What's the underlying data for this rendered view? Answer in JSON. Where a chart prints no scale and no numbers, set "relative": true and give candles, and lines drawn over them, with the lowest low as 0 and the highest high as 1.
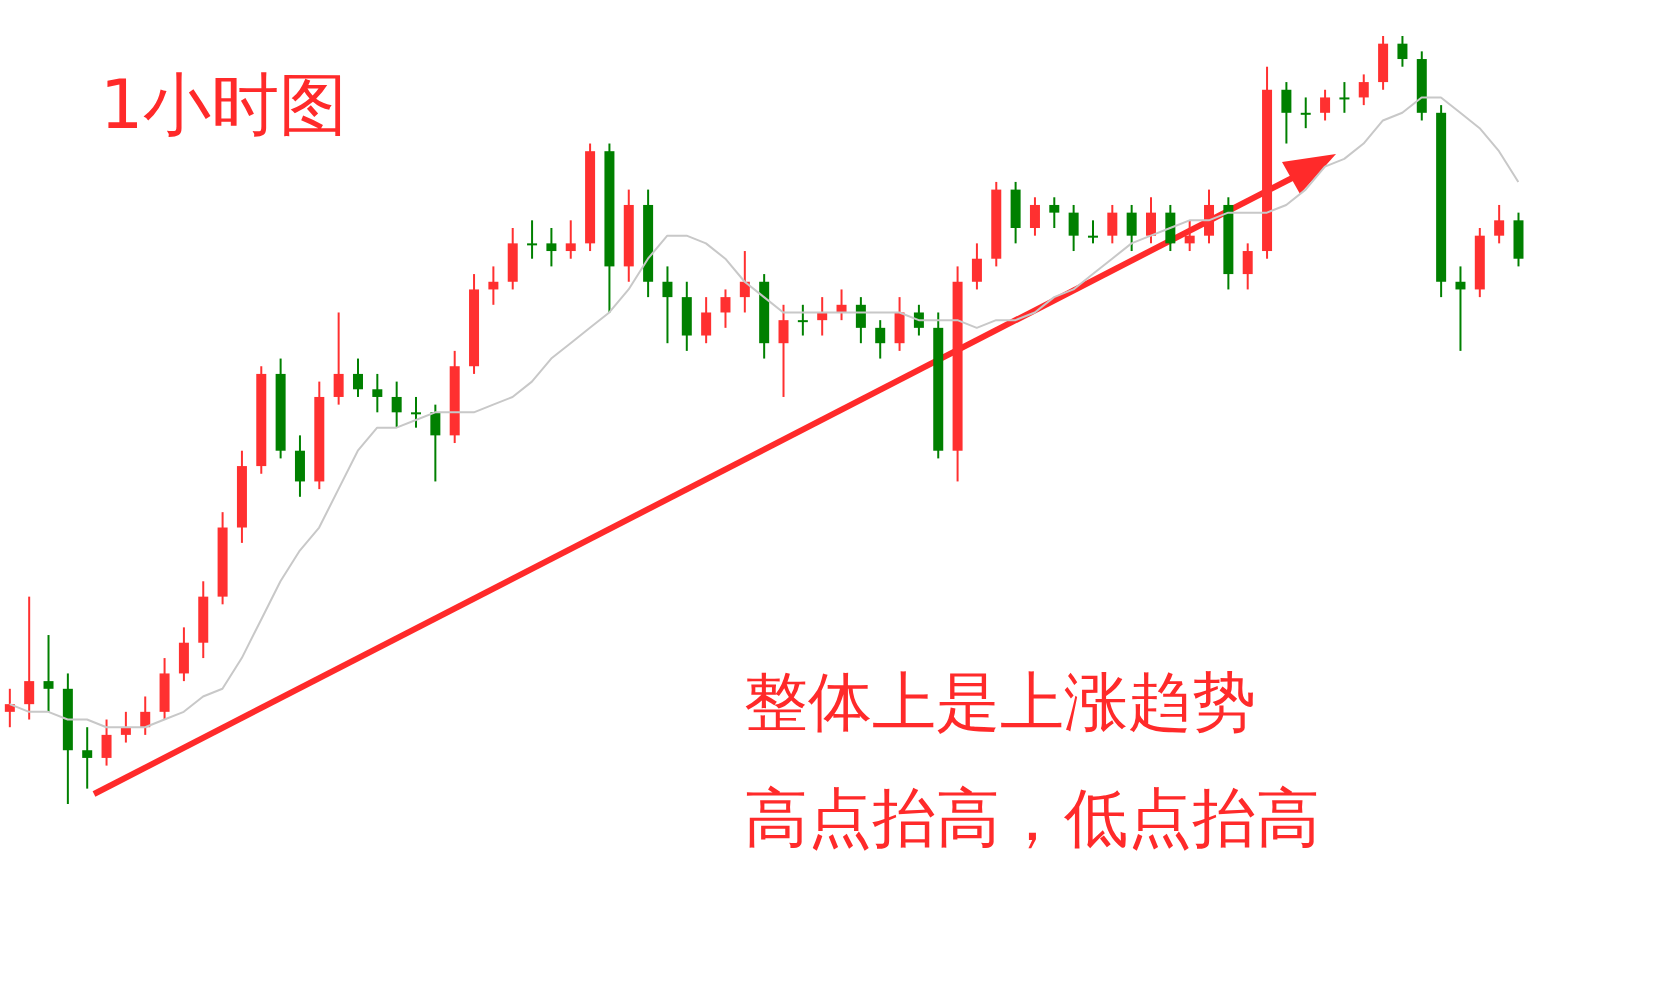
{
  "chart_data": {
    "type": "candlestick",
    "title": "1小时图",
    "relative": true,
    "annotations": [
      "整体上是上涨趋势",
      "高点抬高，低点抬高"
    ],
    "categories": [
      null,
      null,
      null,
      null,
      null,
      null,
      null,
      null,
      null,
      null,
      null,
      null,
      null,
      null,
      null,
      null,
      null,
      null,
      null,
      null,
      null,
      null,
      null,
      null,
      null,
      null,
      null,
      null,
      null,
      null,
      null,
      null,
      null,
      null,
      null,
      null,
      null,
      null,
      null,
      null,
      null,
      null,
      null,
      null,
      null,
      null,
      null,
      null,
      null,
      null,
      null,
      null,
      null,
      null,
      null,
      null,
      null,
      null,
      null,
      null,
      null,
      null,
      null,
      null,
      null,
      null,
      null,
      null,
      null,
      null,
      null,
      null,
      null,
      null,
      null,
      null,
      null,
      null,
      null
    ],
    "ohlc": [
      [
        0.12,
        0.15,
        0.1,
        0.13
      ],
      [
        0.13,
        0.27,
        0.11,
        0.16
      ],
      [
        0.16,
        0.22,
        0.12,
        0.15
      ],
      [
        0.15,
        0.17,
        0,
        0.07
      ],
      [
        0.07,
        0.1,
        0.02,
        0.06
      ],
      [
        0.06,
        0.11,
        0.05,
        0.09
      ],
      [
        0.09,
        0.12,
        0.08,
        0.1
      ],
      [
        0.1,
        0.14,
        0.09,
        0.12
      ],
      [
        0.12,
        0.19,
        0.11,
        0.17
      ],
      [
        0.17,
        0.23,
        0.16,
        0.21
      ],
      [
        0.21,
        0.29,
        0.19,
        0.27
      ],
      [
        0.27,
        0.38,
        0.26,
        0.36
      ],
      [
        0.36,
        0.46,
        0.34,
        0.44
      ],
      [
        0.44,
        0.57,
        0.43,
        0.56
      ],
      [
        0.56,
        0.58,
        0.45,
        0.46
      ],
      [
        0.46,
        0.48,
        0.4,
        0.42
      ],
      [
        0.42,
        0.55,
        0.41,
        0.53
      ],
      [
        0.53,
        0.64,
        0.52,
        0.56
      ],
      [
        0.56,
        0.58,
        0.53,
        0.54
      ],
      [
        0.54,
        0.56,
        0.51,
        0.53
      ],
      [
        0.53,
        0.55,
        0.49,
        0.51
      ],
      [
        0.51,
        0.53,
        0.49,
        0.51
      ],
      [
        0.51,
        0.52,
        0.42,
        0.48
      ],
      [
        0.48,
        0.59,
        0.47,
        0.57
      ],
      [
        0.57,
        0.69,
        0.56,
        0.67
      ],
      [
        0.67,
        0.7,
        0.65,
        0.68
      ],
      [
        0.68,
        0.75,
        0.67,
        0.73
      ],
      [
        0.73,
        0.76,
        0.71,
        0.73
      ],
      [
        0.73,
        0.75,
        0.7,
        0.72
      ],
      [
        0.72,
        0.76,
        0.71,
        0.73
      ],
      [
        0.73,
        0.86,
        0.72,
        0.85
      ],
      [
        0.85,
        0.86,
        0.64,
        0.7
      ],
      [
        0.7,
        0.8,
        0.68,
        0.78
      ],
      [
        0.78,
        0.8,
        0.66,
        0.68
      ],
      [
        0.68,
        0.7,
        0.6,
        0.66
      ],
      [
        0.66,
        0.68,
        0.59,
        0.61
      ],
      [
        0.61,
        0.66,
        0.6,
        0.64
      ],
      [
        0.64,
        0.67,
        0.62,
        0.66
      ],
      [
        0.66,
        0.72,
        0.64,
        0.68
      ],
      [
        0.68,
        0.69,
        0.58,
        0.6
      ],
      [
        0.6,
        0.65,
        0.53,
        0.63
      ],
      [
        0.63,
        0.65,
        0.61,
        0.63
      ],
      [
        0.63,
        0.66,
        0.61,
        0.64
      ],
      [
        0.64,
        0.67,
        0.63,
        0.65
      ],
      [
        0.65,
        0.66,
        0.6,
        0.62
      ],
      [
        0.62,
        0.63,
        0.58,
        0.6
      ],
      [
        0.6,
        0.66,
        0.59,
        0.64
      ],
      [
        0.64,
        0.65,
        0.61,
        0.62
      ],
      [
        0.62,
        0.64,
        0.45,
        0.46
      ],
      [
        0.46,
        0.7,
        0.42,
        0.68
      ],
      [
        0.68,
        0.73,
        0.67,
        0.71
      ],
      [
        0.71,
        0.81,
        0.7,
        0.8
      ],
      [
        0.8,
        0.81,
        0.73,
        0.75
      ],
      [
        0.75,
        0.79,
        0.74,
        0.78
      ],
      [
        0.78,
        0.79,
        0.75,
        0.77
      ],
      [
        0.77,
        0.78,
        0.72,
        0.74
      ],
      [
        0.74,
        0.76,
        0.73,
        0.74
      ],
      [
        0.74,
        0.78,
        0.73,
        0.77
      ],
      [
        0.77,
        0.78,
        0.72,
        0.74
      ],
      [
        0.74,
        0.79,
        0.73,
        0.77
      ],
      [
        0.77,
        0.78,
        0.72,
        0.73
      ],
      [
        0.73,
        0.76,
        0.72,
        0.74
      ],
      [
        0.74,
        0.8,
        0.73,
        0.78
      ],
      [
        0.78,
        0.79,
        0.67,
        0.69
      ],
      [
        0.69,
        0.73,
        0.67,
        0.72
      ],
      [
        0.72,
        0.96,
        0.71,
        0.93
      ],
      [
        0.93,
        0.94,
        0.86,
        0.9
      ],
      [
        0.9,
        0.92,
        0.88,
        0.9
      ],
      [
        0.9,
        0.93,
        0.89,
        0.92
      ],
      [
        0.92,
        0.94,
        0.9,
        0.92
      ],
      [
        0.92,
        0.95,
        0.91,
        0.94
      ],
      [
        0.94,
        1,
        0.93,
        0.99
      ],
      [
        0.99,
        1,
        0.96,
        0.97
      ],
      [
        0.97,
        0.98,
        0.89,
        0.9
      ],
      [
        0.9,
        0.91,
        0.66,
        0.68
      ],
      [
        0.68,
        0.7,
        0.59,
        0.67
      ],
      [
        0.67,
        0.75,
        0.66,
        0.74
      ],
      [
        0.74,
        0.78,
        0.73,
        0.76
      ],
      [
        0.76,
        0.77,
        0.7,
        0.71
      ]
    ],
    "colors": [
      "#ff3030",
      "#ff3030",
      "#008000",
      "#008000",
      "#008000",
      "#ff3030",
      "#ff3030",
      "#ff3030",
      "#ff3030",
      "#ff3030",
      "#ff3030",
      "#ff3030",
      "#ff3030",
      "#ff3030",
      "#008000",
      "#008000",
      "#ff3030",
      "#ff3030",
      "#008000",
      "#008000",
      "#008000",
      "#008000",
      "#008000",
      "#ff3030",
      "#ff3030",
      "#ff3030",
      "#ff3030",
      "#008000",
      "#008000",
      "#ff3030",
      "#ff3030",
      "#008000",
      "#ff3030",
      "#008000",
      "#008000",
      "#008000",
      "#ff3030",
      "#ff3030",
      "#ff3030",
      "#008000",
      "#ff3030",
      "#008000",
      "#ff3030",
      "#ff3030",
      "#008000",
      "#008000",
      "#ff3030",
      "#008000",
      "#008000",
      "#ff3030",
      "#ff3030",
      "#ff3030",
      "#008000",
      "#ff3030",
      "#008000",
      "#008000",
      "#008000",
      "#ff3030",
      "#008000",
      "#ff3030",
      "#008000",
      "#ff3030",
      "#ff3030",
      "#008000",
      "#ff3030",
      "#ff3030",
      "#008000",
      "#008000",
      "#ff3030",
      "#008000",
      "#ff3030",
      "#ff3030",
      "#008000",
      "#008000",
      "#008000",
      "#008000",
      "#ff3030",
      "#ff3030",
      "#008000"
    ],
    "series": [
      {
        "type": "line",
        "color": "#c8c8c8",
        "values": [
          0.13,
          0.12,
          0.12,
          0.11,
          0.11,
          0.1,
          0.1,
          0.1,
          0.11,
          0.12,
          0.14,
          0.15,
          0.19,
          0.24,
          0.29,
          0.33,
          0.36,
          0.41,
          0.46,
          0.49,
          0.49,
          0.5,
          0.51,
          0.51,
          0.51,
          0.52,
          0.53,
          0.55,
          0.58,
          0.6,
          0.62,
          0.64,
          0.67,
          0.71,
          0.74,
          0.74,
          0.73,
          0.71,
          0.68,
          0.66,
          0.64,
          0.64,
          0.64,
          0.64,
          0.64,
          0.64,
          0.64,
          0.63,
          0.63,
          0.63,
          0.62,
          0.63,
          0.63,
          0.64,
          0.66,
          0.67,
          0.69,
          0.71,
          0.73,
          0.74,
          0.75,
          0.76,
          0.76,
          0.77,
          0.77,
          0.77,
          0.78,
          0.8,
          0.83,
          0.84,
          0.86,
          0.89,
          0.9,
          0.92,
          0.92,
          0.9,
          0.88,
          0.85,
          0.81
        ]
      }
    ]
  }
}
